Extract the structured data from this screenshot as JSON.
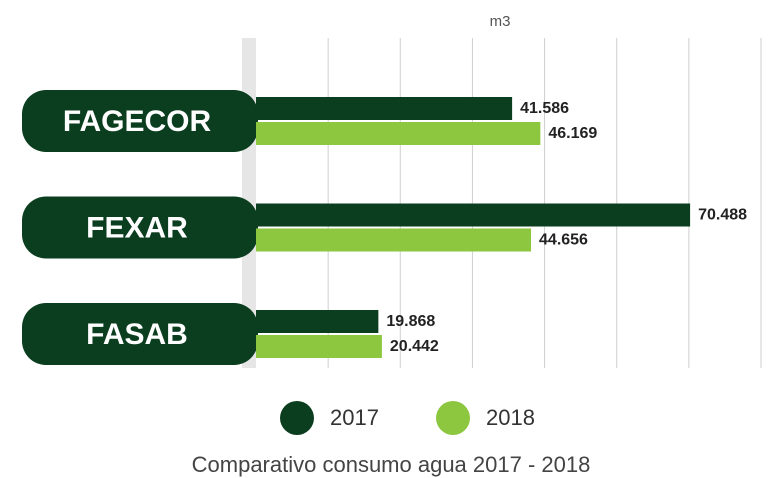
{
  "chart_data": {
    "type": "hbar",
    "title": "Comparativo consumo agua 2017 - 2018",
    "xlabel": "m3",
    "categories": [
      "FAGECOR",
      "FEXAR",
      "FASAB"
    ],
    "series": [
      {
        "name": "2017",
        "color": "#0b3d1f",
        "values": [
          41586,
          70488,
          19868
        ],
        "value_labels": [
          "41.586",
          "70.488",
          "19.868"
        ]
      },
      {
        "name": "2018",
        "color": "#8dc63f",
        "values": [
          46169,
          44656,
          20442
        ],
        "value_labels": [
          "46.169",
          "44.656",
          "20.442"
        ]
      }
    ],
    "xlim": [
      0,
      82000
    ],
    "grid": true,
    "legend": "bottom"
  }
}
